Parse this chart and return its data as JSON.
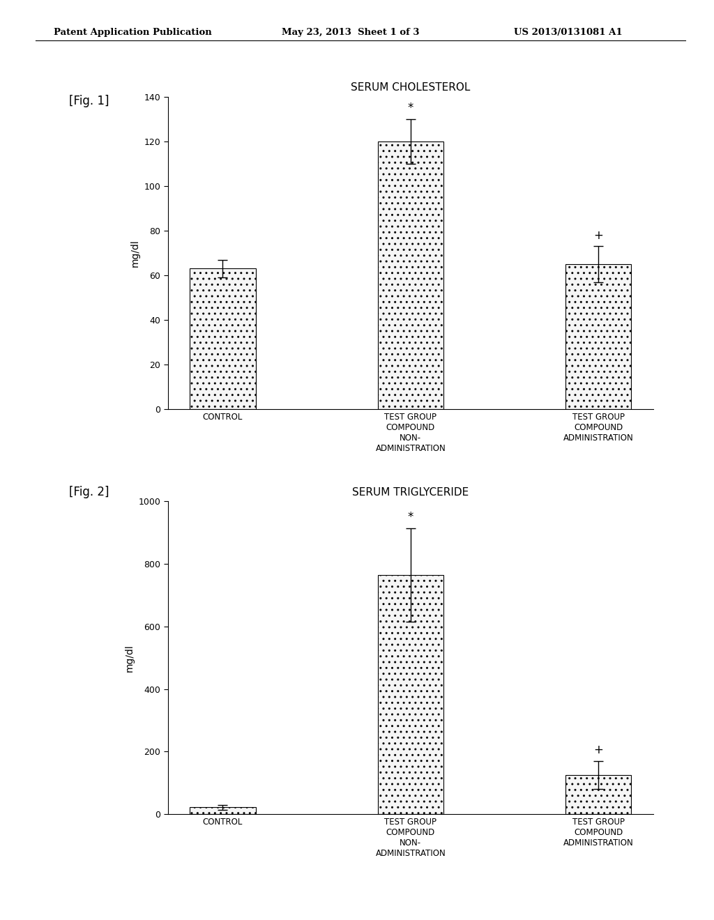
{
  "header_left": "Patent Application Publication",
  "header_mid": "May 23, 2013  Sheet 1 of 3",
  "header_right": "US 2013/0131081 A1",
  "fig1_label": "[Fig. 1]",
  "fig2_label": "[Fig. 2]",
  "fig1_title": "SERUM CHOLESTEROL",
  "fig2_title": "SERUM TRIGLYCERIDE",
  "ylabel": "mg/dl",
  "categories": [
    "CONTROL",
    "TEST GROUP\nCOMPOUND\nNON-\nADMINISTRATION",
    "TEST GROUP\nCOMPOUND\nADMINISTRATION"
  ],
  "fig1_values": [
    63,
    120,
    65
  ],
  "fig1_errors": [
    4,
    10,
    8
  ],
  "fig1_ylim": [
    0,
    140
  ],
  "fig1_yticks": [
    0,
    20,
    40,
    60,
    80,
    100,
    120,
    140
  ],
  "fig2_values": [
    22,
    765,
    125
  ],
  "fig2_errors": [
    8,
    150,
    45
  ],
  "fig2_ylim": [
    0,
    1000
  ],
  "fig2_yticks": [
    0,
    200,
    400,
    600,
    800,
    1000
  ],
  "fig1_annotations": [
    "",
    "*",
    "+"
  ],
  "fig2_annotations": [
    "",
    "*",
    "+"
  ],
  "bar_color": "#f5f5f5",
  "bar_edgecolor": "#000000",
  "background_color": "#ffffff",
  "text_color": "#000000"
}
